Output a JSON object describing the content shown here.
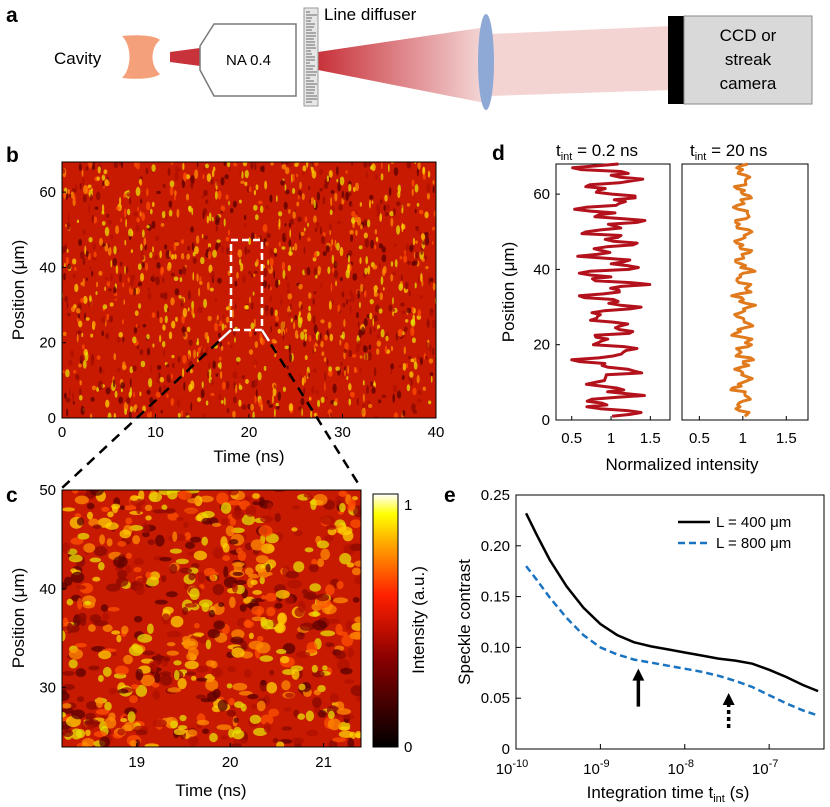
{
  "panel_labels": {
    "a": "a",
    "b": "b",
    "c": "c",
    "d": "d",
    "e": "e"
  },
  "panel_a": {
    "cavity_label": "Cavity",
    "objective_label": "NA 0.4",
    "diffuser_label": "Line diffuser",
    "camera_line1": "CCD or",
    "camera_line2": "streak",
    "camera_line3": "camera"
  },
  "panel_b": {
    "xlabel": "Time (ns)",
    "ylabel": "Position (μm)",
    "x_ticks": [
      "0",
      "10",
      "20",
      "30",
      "40"
    ],
    "y_ticks": [
      "0",
      "20",
      "40",
      "60"
    ],
    "xlim": [
      0,
      40
    ],
    "ylim": [
      0,
      68
    ]
  },
  "panel_c": {
    "xlabel": "Time (ns)",
    "ylabel": "Position (μm)",
    "x_ticks": [
      "19",
      "20",
      "21"
    ],
    "y_ticks": [
      "30",
      "40",
      "50"
    ],
    "colorbar_label": "Intensity (a.u.)",
    "colorbar_ticks": [
      "0",
      "1"
    ]
  },
  "panel_d": {
    "left_title_main": "t",
    "left_title_sub": "int",
    "left_title_rest": " = 0.2 ns",
    "right_title_main": "t",
    "right_title_sub": "int",
    "right_title_rest": " = 20 ns",
    "xlabel": "Normalized intensity",
    "ylabel": "Position (μm)",
    "x_ticks": [
      "0.5",
      "1",
      "1.5"
    ],
    "y_ticks": [
      "0",
      "20",
      "40",
      "60"
    ]
  },
  "colors": {
    "trace_short": "#b3111b",
    "trace_long": "#e07a1c",
    "line_400": "#000000",
    "line_800": "#1a73c0",
    "lens": "#8fa9d6",
    "camera_fill": "#d9d9d9",
    "cavity": "#f4a07a"
  },
  "chart_data": {
    "type": "line",
    "title": "",
    "xlabel_main": "Integration time t",
    "xlabel_sub": "int",
    "xlabel_rest": " (s)",
    "ylabel": "Speckle contrast",
    "xscale": "log",
    "xlim_exp": [
      -10,
      -6.35
    ],
    "ylim": [
      0,
      0.25
    ],
    "x_ticks_base": [
      "10",
      "10",
      "10",
      "10"
    ],
    "x_ticks_exp": [
      "-10",
      "-9",
      "-8",
      "-7"
    ],
    "y_ticks": [
      "0",
      "0.05",
      "0.10",
      "0.15",
      "0.20",
      "0.25"
    ],
    "series": [
      {
        "name": "L = 400 μm",
        "style": "solid",
        "log10_x": [
          -9.88,
          -9.75,
          -9.6,
          -9.4,
          -9.2,
          -9.0,
          -8.8,
          -8.6,
          -8.4,
          -8.2,
          -8.0,
          -7.8,
          -7.6,
          -7.4,
          -7.2,
          -7.0,
          -6.8,
          -6.6,
          -6.42
        ],
        "values": [
          0.232,
          0.21,
          0.186,
          0.16,
          0.139,
          0.123,
          0.112,
          0.105,
          0.101,
          0.098,
          0.095,
          0.092,
          0.089,
          0.087,
          0.084,
          0.078,
          0.071,
          0.063,
          0.057
        ]
      },
      {
        "name": "L = 800 μm",
        "style": "dashed",
        "log10_x": [
          -9.88,
          -9.75,
          -9.6,
          -9.4,
          -9.2,
          -9.0,
          -8.8,
          -8.6,
          -8.4,
          -8.2,
          -8.0,
          -7.8,
          -7.6,
          -7.4,
          -7.2,
          -7.0,
          -6.8,
          -6.6,
          -6.42
        ],
        "values": [
          0.18,
          0.166,
          0.149,
          0.129,
          0.112,
          0.1,
          0.093,
          0.088,
          0.085,
          0.082,
          0.079,
          0.076,
          0.072,
          0.067,
          0.061,
          0.053,
          0.045,
          0.038,
          0.033
        ]
      }
    ],
    "arrows": [
      {
        "log10_x": -8.55,
        "y_tip": 0.087,
        "style": "solid"
      },
      {
        "log10_x": -7.48,
        "y_tip": 0.063,
        "style": "dashed"
      }
    ]
  }
}
